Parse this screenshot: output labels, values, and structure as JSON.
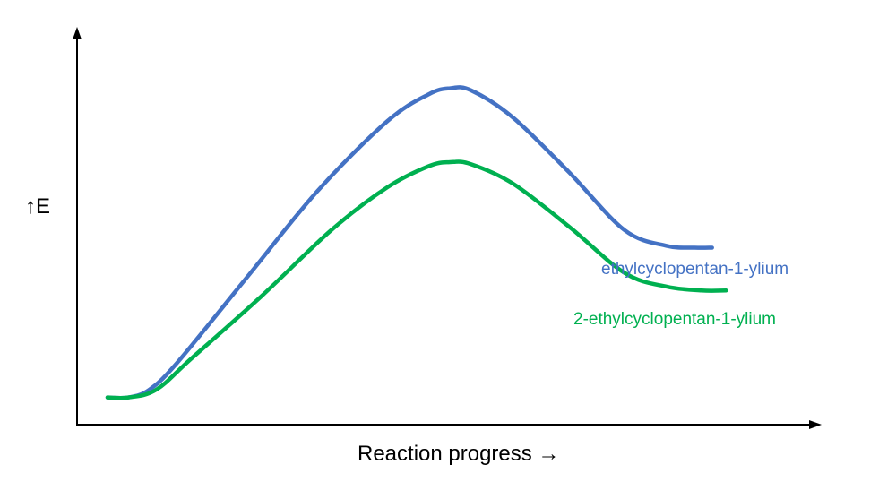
{
  "chart_data": {
    "type": "line",
    "title": "",
    "xlabel": "Reaction progress →",
    "ylabel": "↑E",
    "grid": false,
    "legend": "inline-right",
    "xlim": [
      0,
      100
    ],
    "ylim": [
      0,
      100
    ],
    "series": [
      {
        "name": "ethylcyclopentan-1-ylium",
        "color": "#4472c4",
        "points": [
          [
            0,
            7
          ],
          [
            3,
            7
          ],
          [
            6,
            9
          ],
          [
            10,
            16
          ],
          [
            20,
            38
          ],
          [
            30,
            60
          ],
          [
            40,
            78
          ],
          [
            46,
            85
          ],
          [
            49,
            86.5
          ],
          [
            52,
            86
          ],
          [
            58,
            79
          ],
          [
            66,
            65
          ],
          [
            74,
            50
          ],
          [
            80,
            46
          ],
          [
            84,
            45.5
          ],
          [
            86.5,
            45.5
          ]
        ]
      },
      {
        "name": "2-ethylcyclopentan-1-ylium",
        "color": "#00b050",
        "points": [
          [
            0,
            7
          ],
          [
            3,
            7
          ],
          [
            7,
            9
          ],
          [
            12,
            17
          ],
          [
            22,
            33
          ],
          [
            32,
            50
          ],
          [
            40,
            61
          ],
          [
            46,
            66.5
          ],
          [
            49,
            67.5
          ],
          [
            52,
            67
          ],
          [
            58,
            62
          ],
          [
            66,
            51
          ],
          [
            74,
            39
          ],
          [
            80,
            35.5
          ],
          [
            85,
            34.5
          ],
          [
            88.5,
            34.5
          ]
        ]
      }
    ]
  }
}
